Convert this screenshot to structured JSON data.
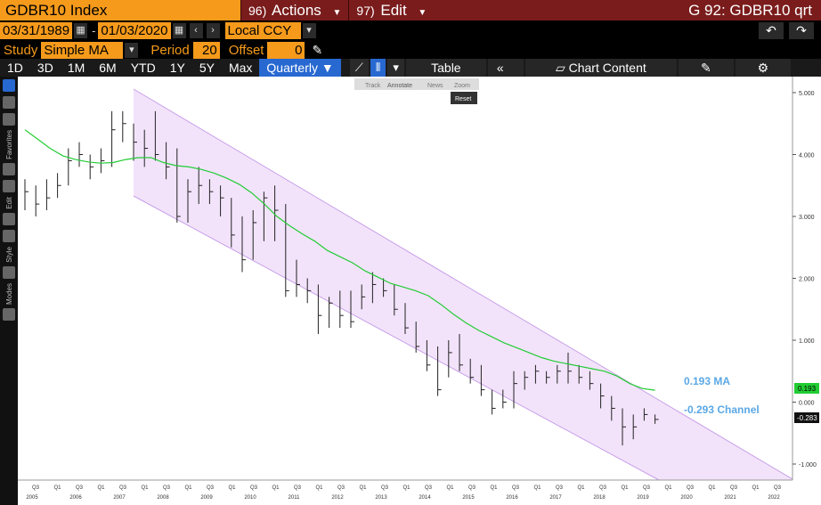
{
  "header": {
    "ticker": "GDBR10 Index",
    "actions_num": "96)",
    "actions_label": "Actions",
    "edit_num": "97)",
    "edit_label": "Edit",
    "title_right": "G 92: GDBR10 qrt"
  },
  "dates": {
    "start": "03/31/1989",
    "sep": "-",
    "end": "01/03/2020",
    "currency": "Local CCY"
  },
  "study": {
    "label": "Study",
    "value": "Simple MA",
    "period_label": "Period",
    "period": "20",
    "offset_label": "Offset",
    "offset": "0"
  },
  "toolbar": {
    "ranges": [
      "1D",
      "3D",
      "1M",
      "6M",
      "YTD",
      "1Y",
      "5Y",
      "Max"
    ],
    "freq": "Quarterly",
    "table": "Table",
    "chart_content": "Chart Content"
  },
  "floating": {
    "track": "Track",
    "annotate": "Annotate",
    "news": "News",
    "zoom": "Zoom",
    "reset": "Reset"
  },
  "left_sections": [
    "Favorites",
    "Edit",
    "Style",
    "Modes"
  ],
  "colors": {
    "accent": "#f59a1b",
    "header": "#7a1c1c",
    "ma": "#22cc33",
    "channel": "#c9a0e8",
    "price": "#222222",
    "label_blue": "#5ba8e5"
  },
  "chart_data": {
    "type": "ohlc",
    "yticks": [
      "5.000",
      "4.000",
      "3.000",
      "2.000",
      "1.000",
      "0.000",
      "-1.000"
    ],
    "ylim": [
      -1.1,
      5.1
    ],
    "x_quarter_labels": [
      "Q3",
      "Q1",
      "Q3",
      "Q1",
      "Q3",
      "Q1",
      "Q3",
      "Q1",
      "Q3",
      "Q1",
      "Q3",
      "Q1",
      "Q3",
      "Q1",
      "Q3",
      "Q1",
      "Q3",
      "Q1",
      "Q3",
      "Q1",
      "Q3",
      "Q1",
      "Q3",
      "Q1",
      "Q3",
      "Q1",
      "Q3",
      "Q1",
      "Q3",
      "Q1",
      "Q3",
      "Q1",
      "Q3",
      "Q1",
      "Q3"
    ],
    "x_years": [
      "2005",
      "2006",
      "2007",
      "2008",
      "2009",
      "2010",
      "2011",
      "2012",
      "2013",
      "2014",
      "2015",
      "2016",
      "2017",
      "2018",
      "2019",
      "2020",
      "2021",
      "2022"
    ],
    "bars": [
      [
        3.6,
        3.1,
        3.4
      ],
      [
        3.5,
        3.0,
        3.2
      ],
      [
        3.6,
        3.1,
        3.3
      ],
      [
        3.7,
        3.3,
        3.5
      ],
      [
        4.1,
        3.5,
        3.9
      ],
      [
        4.2,
        3.8,
        4.0
      ],
      [
        4.0,
        3.6,
        3.8
      ],
      [
        4.1,
        3.7,
        3.9
      ],
      [
        4.7,
        3.8,
        4.4
      ],
      [
        4.7,
        4.2,
        4.5
      ],
      [
        4.5,
        3.9,
        4.2
      ],
      [
        4.4,
        3.8,
        4.1
      ],
      [
        4.7,
        3.9,
        4.0
      ],
      [
        4.2,
        3.6,
        3.8
      ],
      [
        4.1,
        2.9,
        3.0
      ],
      [
        3.6,
        2.9,
        3.4
      ],
      [
        3.8,
        3.2,
        3.5
      ],
      [
        3.6,
        3.2,
        3.4
      ],
      [
        3.5,
        3.0,
        3.3
      ],
      [
        3.3,
        2.5,
        2.7
      ],
      [
        3.0,
        2.1,
        2.3
      ],
      [
        3.1,
        2.3,
        2.9
      ],
      [
        3.4,
        2.6,
        3.3
      ],
      [
        3.5,
        2.6,
        3.1
      ],
      [
        3.2,
        1.7,
        1.8
      ],
      [
        2.3,
        1.7,
        1.9
      ],
      [
        2.0,
        1.6,
        1.8
      ],
      [
        1.9,
        1.1,
        1.4
      ],
      [
        1.7,
        1.2,
        1.6
      ],
      [
        1.8,
        1.2,
        1.4
      ],
      [
        1.8,
        1.2,
        1.3
      ],
      [
        1.9,
        1.5,
        1.7
      ],
      [
        2.1,
        1.6,
        1.9
      ],
      [
        2.0,
        1.7,
        1.8
      ],
      [
        1.9,
        1.4,
        1.5
      ],
      [
        1.6,
        1.1,
        1.2
      ],
      [
        1.3,
        0.8,
        0.9
      ],
      [
        1.0,
        0.5,
        0.6
      ],
      [
        0.9,
        0.1,
        0.2
      ],
      [
        1.0,
        0.4,
        0.8
      ],
      [
        1.1,
        0.5,
        0.6
      ],
      [
        0.7,
        0.3,
        0.4
      ],
      [
        0.6,
        0.1,
        0.2
      ],
      [
        0.2,
        -0.2,
        -0.1
      ],
      [
        0.2,
        -0.1,
        0.0
      ],
      [
        0.5,
        -0.1,
        0.3
      ],
      [
        0.5,
        0.2,
        0.4
      ],
      [
        0.6,
        0.3,
        0.5
      ],
      [
        0.5,
        0.3,
        0.4
      ],
      [
        0.6,
        0.3,
        0.5
      ],
      [
        0.8,
        0.3,
        0.5
      ],
      [
        0.6,
        0.3,
        0.4
      ],
      [
        0.5,
        0.2,
        0.3
      ],
      [
        0.3,
        -0.1,
        0.1
      ],
      [
        0.1,
        -0.3,
        -0.1
      ],
      [
        -0.1,
        -0.7,
        -0.4
      ],
      [
        -0.2,
        -0.6,
        -0.4
      ],
      [
        -0.1,
        -0.3,
        -0.2
      ],
      [
        -0.2,
        -0.35,
        -0.28
      ]
    ],
    "ma": [
      4.4,
      4.25,
      4.1,
      3.98,
      3.92,
      3.88,
      3.86,
      3.87,
      3.92,
      3.95,
      3.95,
      3.87,
      3.82,
      3.8,
      3.76,
      3.7,
      3.62,
      3.52,
      3.38,
      3.2,
      3.0,
      2.85,
      2.72,
      2.6,
      2.45,
      2.35,
      2.25,
      2.12,
      2.02,
      1.92,
      1.86,
      1.8,
      1.72,
      1.58,
      1.42,
      1.28,
      1.16,
      1.06,
      0.96,
      0.88,
      0.8,
      0.72,
      0.66,
      0.62,
      0.58,
      0.54,
      0.5,
      0.42,
      0.3,
      0.22,
      0.193
    ],
    "ma_label": "0.193 MA",
    "channel_label": "-0.293 Channel",
    "right_badges": [
      "0.193",
      "-0.283"
    ]
  }
}
